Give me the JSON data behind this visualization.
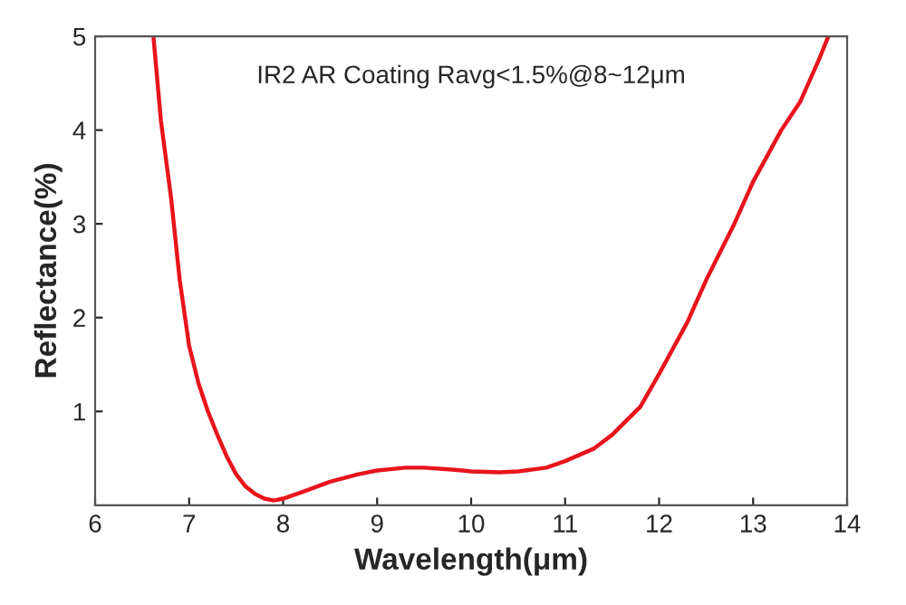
{
  "chart_data": {
    "type": "line",
    "title": "IR2 AR Coating Ravg<1.5%@8~12μm",
    "xlabel": "Wavelength(μm)",
    "ylabel": "Reflectance(%)",
    "x": [
      6.62,
      6.7,
      6.81,
      6.9,
      7.0,
      7.1,
      7.2,
      7.3,
      7.4,
      7.5,
      7.6,
      7.7,
      7.8,
      7.9,
      8.0,
      8.2,
      8.5,
      8.8,
      9.0,
      9.3,
      9.5,
      9.8,
      10.0,
      10.3,
      10.5,
      10.8,
      11.0,
      11.3,
      11.5,
      11.8,
      12.0,
      12.3,
      12.5,
      12.8,
      13.0,
      13.3,
      13.5,
      13.7,
      13.8
    ],
    "series": [
      {
        "color": "#e8141c",
        "values": [
          5.0,
          4.1,
          3.26,
          2.4,
          1.7,
          1.3,
          1.0,
          0.75,
          0.52,
          0.33,
          0.2,
          0.12,
          0.07,
          0.05,
          0.07,
          0.14,
          0.25,
          0.33,
          0.37,
          0.4,
          0.4,
          0.38,
          0.36,
          0.35,
          0.36,
          0.4,
          0.47,
          0.6,
          0.75,
          1.05,
          1.4,
          1.95,
          2.4,
          3.0,
          3.45,
          4.0,
          4.3,
          4.75,
          5.0
        ]
      }
    ],
    "xlim": [
      6,
      14
    ],
    "ylim": [
      0,
      5
    ],
    "xticks": [
      6,
      7,
      8,
      9,
      10,
      11,
      12,
      13,
      14
    ],
    "yticks": [
      1,
      2,
      3,
      4,
      5
    ],
    "grid": false,
    "legend": false,
    "marker": "none",
    "line_style": "solid"
  }
}
